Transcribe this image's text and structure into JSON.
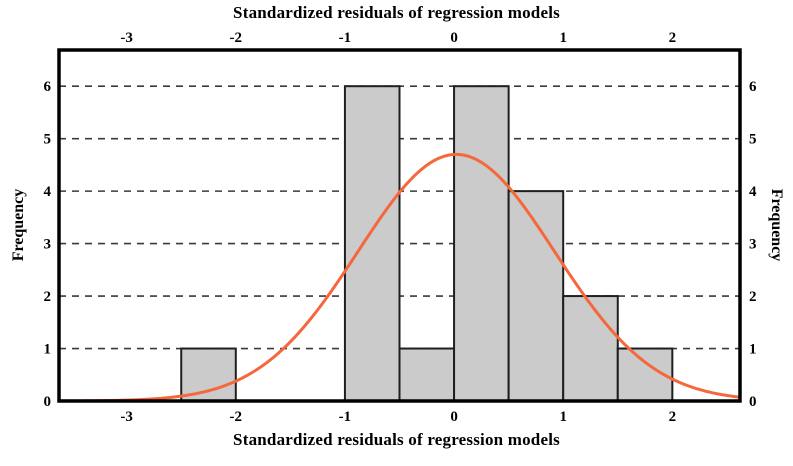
{
  "chart_data": {
    "type": "bar",
    "subtype": "histogram-with-normal-curve",
    "title_top": "Standardized residuals of regression models",
    "title_bottom": "Standardized residuals of regression models",
    "ylabel_left": "Frequency",
    "ylabel_right": "Frequency",
    "x_ticks": [
      -3,
      -2,
      -1,
      0,
      1,
      2
    ],
    "y_ticks": [
      0,
      1,
      2,
      3,
      4,
      5,
      6
    ],
    "xlim": [
      -3.62,
      2.62
    ],
    "ylim": [
      0,
      6.69
    ],
    "bin_width": 0.5,
    "bars": [
      {
        "x_start": -2.5,
        "x_end": -2.0,
        "frequency": 1
      },
      {
        "x_start": -1.0,
        "x_end": -0.5,
        "frequency": 6
      },
      {
        "x_start": -0.5,
        "x_end": 0.0,
        "frequency": 1
      },
      {
        "x_start": 0.0,
        "x_end": 0.5,
        "frequency": 6
      },
      {
        "x_start": 0.5,
        "x_end": 1.0,
        "frequency": 4
      },
      {
        "x_start": 1.0,
        "x_end": 1.5,
        "frequency": 2
      },
      {
        "x_start": 1.5,
        "x_end": 2.0,
        "frequency": 1
      }
    ],
    "curve": {
      "type": "normal",
      "mean": 0.02,
      "sigma": 0.9,
      "peak": 4.7
    },
    "grid": {
      "horizontal_dashed": true,
      "legend": "none"
    },
    "colors": {
      "bar_fill": "#cbcbcb",
      "bar_border": "#1f1f1f",
      "curve": "#f4683c",
      "grid": "#3a3a3a",
      "axis_frame": "#000000",
      "background": "#ffffff",
      "text": "#000000"
    }
  }
}
